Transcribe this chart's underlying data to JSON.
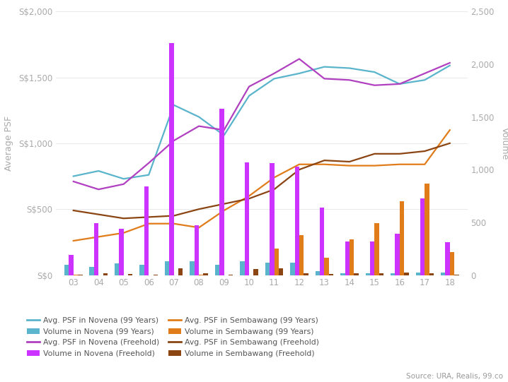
{
  "years": [
    3,
    4,
    5,
    6,
    7,
    8,
    9,
    10,
    11,
    12,
    13,
    14,
    15,
    16,
    17,
    18
  ],
  "psf_novena_99": [
    750,
    790,
    730,
    760,
    1290,
    1200,
    1060,
    1360,
    1490,
    1530,
    1580,
    1570,
    1540,
    1450,
    1480,
    1590
  ],
  "psf_novena_fh": [
    710,
    650,
    690,
    850,
    1020,
    1130,
    1100,
    1430,
    1530,
    1640,
    1490,
    1480,
    1440,
    1450,
    1530,
    1610
  ],
  "psf_sembawang_99": [
    260,
    290,
    320,
    390,
    390,
    360,
    490,
    600,
    740,
    840,
    840,
    830,
    830,
    840,
    840,
    1100
  ],
  "psf_sembawang_fh": [
    490,
    460,
    430,
    440,
    450,
    500,
    540,
    580,
    650,
    800,
    870,
    860,
    920,
    920,
    940,
    1000
  ],
  "vol_novena_99": [
    95,
    75,
    110,
    100,
    130,
    130,
    95,
    130,
    115,
    115,
    35,
    15,
    20,
    20,
    25,
    25
  ],
  "vol_novena_fh": [
    190,
    490,
    440,
    840,
    2200,
    470,
    1580,
    1070,
    1060,
    1030,
    640,
    320,
    320,
    390,
    730,
    310
  ],
  "vol_sembawang_99": [
    2,
    0,
    0,
    0,
    0,
    2,
    0,
    0,
    250,
    380,
    165,
    340,
    490,
    700,
    870,
    215
  ],
  "vol_sembawang_fh": [
    2,
    15,
    8,
    3,
    65,
    15,
    2,
    55,
    65,
    20,
    8,
    18,
    18,
    25,
    18,
    5
  ],
  "colors": {
    "line_novena_99": "#5ab4cc",
    "line_novena_fh": "#b040c0",
    "line_sembawang_99": "#e07c1a",
    "line_sembawang_fh": "#8b4513",
    "bar_novena_99": "#5ab4cc",
    "bar_novena_fh": "#cc33ff",
    "bar_sembawang_99": "#e07c1a",
    "bar_sembawang_fh": "#8b4513"
  },
  "ylabel_left": "Average PSF",
  "ylabel_right": "Volume",
  "ylim_left": [
    0,
    2000
  ],
  "ylim_right": [
    0,
    2500
  ],
  "yticks_left": [
    0,
    500,
    1000,
    1500,
    2000
  ],
  "ytick_labels_left": [
    "S$0",
    "S$500",
    "S$1,000",
    "S$1,500",
    "S$2,000"
  ],
  "yticks_right": [
    0,
    500,
    1000,
    1500,
    2000,
    2500
  ],
  "ytick_labels_right": [
    "0",
    "500",
    "1,000",
    "1,500",
    "2,000",
    "2,500"
  ],
  "legend_col1": [
    {
      "label": "Avg. PSF in Novena (99 Years)",
      "type": "line",
      "color": "#5ab4cc"
    },
    {
      "label": "Avg. PSF in Novena (Freehold)",
      "type": "line",
      "color": "#b040c0"
    },
    {
      "label": "Avg. PSF in Sembawang (99 Years)",
      "type": "line",
      "color": "#e07c1a"
    },
    {
      "label": "Avg. PSF in Sembawang (Freehold)",
      "type": "line",
      "color": "#8b4513"
    }
  ],
  "legend_col2": [
    {
      "label": "Volume in Novena (99 Years)",
      "type": "bar",
      "color": "#5ab4cc"
    },
    {
      "label": "Volume in Novena (Freehold)",
      "type": "bar",
      "color": "#cc33ff"
    },
    {
      "label": "Volume in Sembawang (99 Years)",
      "type": "bar",
      "color": "#e07c1a"
    },
    {
      "label": "Volume in Sembawang (Freehold)",
      "type": "bar",
      "color": "#8b4513"
    }
  ],
  "source_text": "Source: URA, Realis, 99.co",
  "background_color": "#ffffff",
  "bar_width": 0.18
}
